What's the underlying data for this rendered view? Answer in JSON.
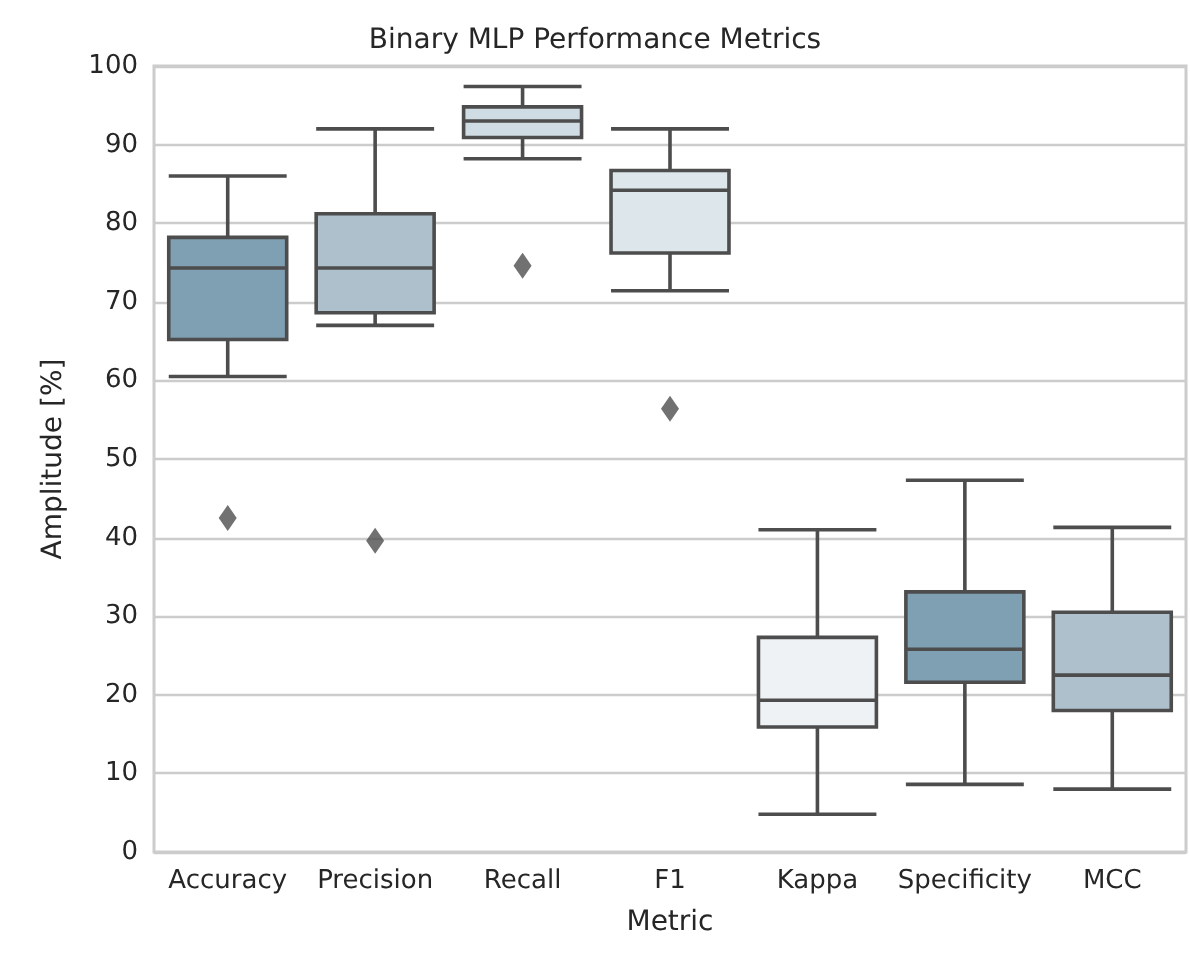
{
  "chart_data": {
    "type": "box",
    "title": "Binary MLP Performance Metrics",
    "xlabel": "Metric",
    "ylabel": "Amplitude [%]",
    "categories": [
      "Accuracy",
      "Precision",
      "Recall",
      "F1",
      "Kappa",
      "Specificity",
      "MCC"
    ],
    "boxes": [
      {
        "low": 60.5,
        "q1": 65.2,
        "median": 74.3,
        "q3": 78.2,
        "high": 86,
        "outliers": [
          42.5
        ]
      },
      {
        "low": 67,
        "q1": 68.6,
        "median": 74.3,
        "q3": 81.2,
        "high": 92,
        "outliers": [
          39.6
        ]
      },
      {
        "low": 88.2,
        "q1": 90.9,
        "median": 93,
        "q3": 94.8,
        "high": 97.4,
        "outliers": [
          74.6
        ]
      },
      {
        "low": 71.4,
        "q1": 76.2,
        "median": 84.2,
        "q3": 86.7,
        "high": 92,
        "outliers": [
          56.4
        ]
      },
      {
        "low": 4.8,
        "q1": 15.9,
        "median": 19.3,
        "q3": 27.3,
        "high": 41
      },
      {
        "low": 8.6,
        "q1": 21.6,
        "median": 25.8,
        "q3": 33.1,
        "high": 47.3
      },
      {
        "low": 8,
        "q1": 18,
        "median": 22.5,
        "q3": 30.5,
        "high": 41.3
      }
    ],
    "colors": [
      "#7f9fb2",
      "#adc0cc",
      "#d0dce3",
      "#dde6ea",
      "#eef2f5",
      "#7f9fb2",
      "#adc0cc"
    ],
    "ylim": [
      0,
      100
    ],
    "yticks": [
      0,
      10,
      20,
      30,
      40,
      50,
      60,
      70,
      80,
      90,
      100
    ],
    "grid": "y"
  }
}
